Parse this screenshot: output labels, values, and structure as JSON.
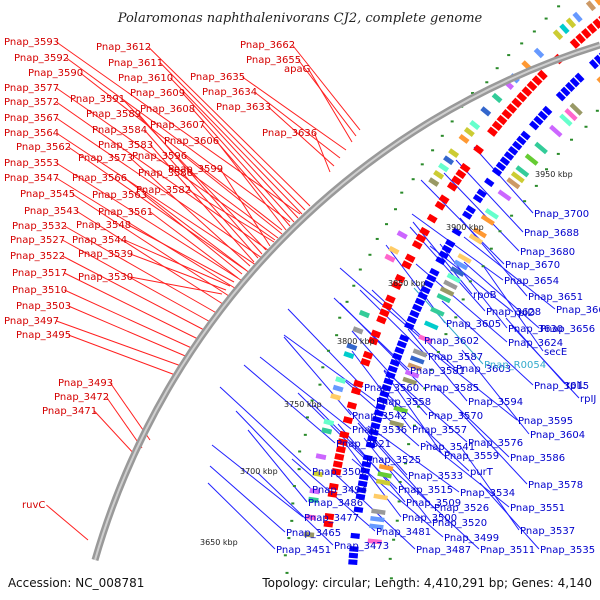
{
  "title": "Polaromonas naphthalenivorans CJ2, complete genome",
  "footer": {
    "accession": "Accession: NC_008781",
    "topology": "Topology: circular; Length: 4,410,291 bp; Genes: 4,140"
  },
  "kbp_labels": [
    "3950 kbp",
    "3900 kbp",
    "3850 kbp",
    "3800 kbp",
    "3750 kbp",
    "3700 kbp",
    "3650 kbp"
  ],
  "red_labels": [
    "Pnap_3593",
    "Pnap_3592",
    "Pnap_3590",
    "Pnap_3577",
    "Pnap_3572",
    "Pnap_3567",
    "Pnap_3564",
    "Pnap_3562",
    "Pnap_3553",
    "Pnap_3547",
    "Pnap_3545",
    "Pnap_3543",
    "Pnap_3532",
    "Pnap_3527",
    "Pnap_3522",
    "Pnap_3517",
    "Pnap_3510",
    "Pnap_3503",
    "Pnap_3497",
    "Pnap_3495",
    "Pnap_3612",
    "Pnap_3611",
    "Pnap_3610",
    "Pnap_3609",
    "Pnap_3608",
    "Pnap_3607",
    "Pnap_3606",
    "Pnap_3596",
    "Pnap_3588",
    "Pnap_3582",
    "Pnap_3599",
    "Pnap_3591",
    "Pnap_3589",
    "Pnap_3584",
    "Pnap_3583",
    "Pnap_3573",
    "Pnap_3566",
    "Pnap_3563",
    "Pnap_3561",
    "Pnap_3548",
    "Pnap_3544",
    "Pnap_3539",
    "Pnap_3530",
    "Pnap_3662",
    "Pnap_3655",
    "apaG",
    "Pnap_3635",
    "Pnap_3634",
    "Pnap_3633",
    "Pnap_3636",
    "Pnap_3493",
    "Pnap_3472",
    "Pnap_3471",
    "ruvC"
  ],
  "blue_labels": [
    "Pnap_3700",
    "Pnap_3688",
    "Pnap_3680",
    "Pnap_3670",
    "Pnap_3654",
    "rpoB",
    "Pnap_3651",
    "Pnap_3628",
    "rpID",
    "Pnap_3668",
    "Pnap_3605",
    "Pnap_3630",
    "Pnap_3656",
    "Pnap_3602",
    "Pnap_3624",
    "secE",
    "Pnap_3587",
    "Pnap_3581",
    "Pnap_3603",
    "Pnap_3615",
    "rpIL",
    "rpIJ",
    "Pnap_3560",
    "Pnap_3585",
    "Pnap_3558",
    "Pnap_3594",
    "Pnap_3542",
    "Pnap_3570",
    "Pnap_3595",
    "Pnap_3536",
    "Pnap_3557",
    "Pnap_3604",
    "Pnap_3541",
    "Pnap_3576",
    "Pnap_3521",
    "Pnap_3559",
    "Pnap_3525",
    "Pnap_3586",
    "purT",
    "Pnap_3502",
    "Pnap_3533",
    "Pnap_3578",
    "Pnap_3494",
    "Pnap_3515",
    "Pnap_3534",
    "Pnap_3486",
    "Pnap_3509",
    "Pnap_3526",
    "Pnap_3551",
    "Pnap_3477",
    "Pnap_3500",
    "Pnap_3520",
    "Pnap_3465",
    "Pnap_3481",
    "Pnap_3499",
    "Pnap_3537",
    "Pnap_3451",
    "Pnap_3473",
    "Pnap_3487",
    "Pnap_3511",
    "Pnap_3535"
  ],
  "cyan_labels": [
    "Pnap_R0054"
  ],
  "colors": {
    "forward": "#ff0000",
    "reverse": "#0000ff",
    "backbone": "#888888",
    "gc": "#2a8a2a"
  }
}
